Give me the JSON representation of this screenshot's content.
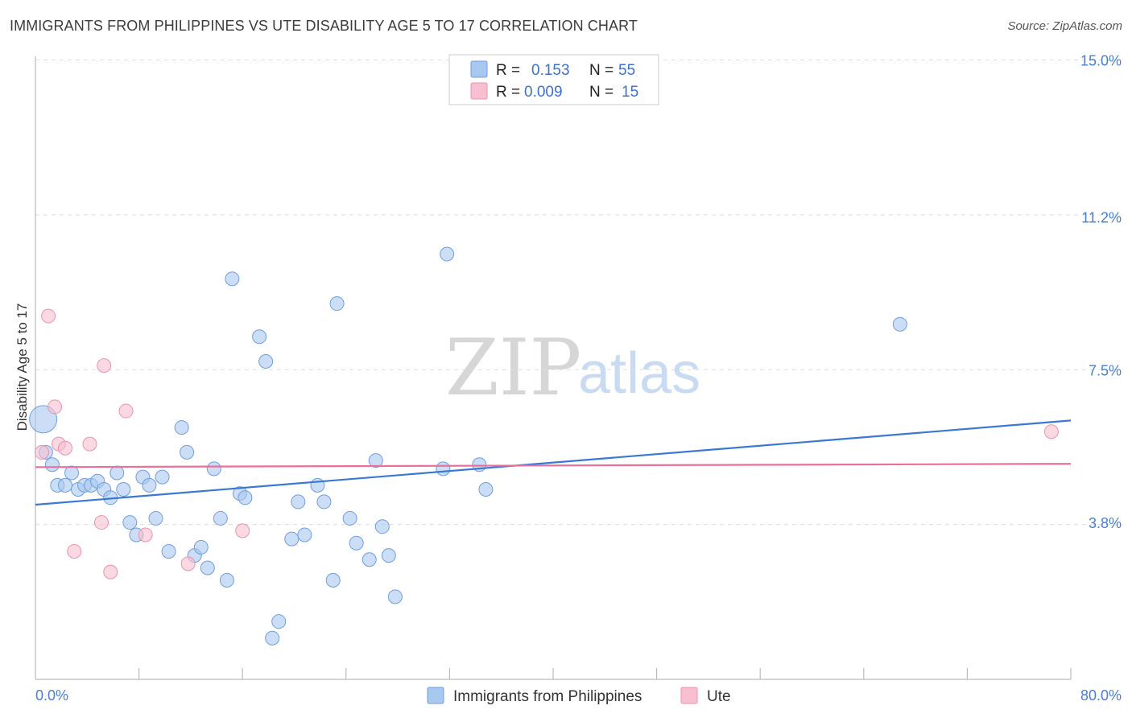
{
  "header": {
    "title": "IMMIGRANTS FROM PHILIPPINES VS UTE DISABILITY AGE 5 TO 17 CORRELATION CHART",
    "source": "Source: ZipAtlas.com"
  },
  "watermark": {
    "zip": "ZIP",
    "atlas": "atlas"
  },
  "stats_legend": [
    {
      "r_label": "R =",
      "r_value": "0.153",
      "n_label": "N =",
      "n_value": "55",
      "color": "#a9c8f0",
      "stroke": "#6f9ee0"
    },
    {
      "r_label": "R =",
      "r_value": "0.009",
      "n_label": "N =",
      "n_value": "15",
      "color": "#f7bfd0",
      "stroke": "#eb93ae"
    }
  ],
  "chart_data": {
    "type": "scatter",
    "title": "IMMIGRANTS FROM PHILIPPINES VS UTE DISABILITY AGE 5 TO 17 CORRELATION CHART",
    "xlabel": "",
    "ylabel": "Disability Age 5 to 17",
    "xlim": [
      0,
      80
    ],
    "ylim": [
      0,
      15.4
    ],
    "x_tick_labels": [
      {
        "value": 0,
        "label": "0.0%"
      },
      {
        "value": 80,
        "label": "80.0%"
      }
    ],
    "y_tick_labels": [
      {
        "value": 15.0,
        "label": "15.0%"
      },
      {
        "value": 11.2,
        "label": "11.2%"
      },
      {
        "value": 7.5,
        "label": "7.5%"
      },
      {
        "value": 3.8,
        "label": "3.8%"
      }
    ],
    "gridlines_y": [
      15.0,
      11.25,
      7.5,
      3.75
    ],
    "legend_position": "bottom-center",
    "series": [
      {
        "name": "Immigrants from Philippines",
        "color": "#a9c8f0",
        "stroke": "#6f9ee0",
        "trend_color": "#3a78d4",
        "trend": {
          "x": [
            0,
            80
          ],
          "y": [
            4.23,
            6.27
          ]
        },
        "points": [
          [
            0.6,
            6.3
          ],
          [
            0.8,
            5.5
          ],
          [
            1.3,
            5.2
          ],
          [
            1.7,
            4.7
          ],
          [
            2.3,
            4.7
          ],
          [
            2.8,
            5.0
          ],
          [
            3.3,
            4.6
          ],
          [
            3.8,
            4.7
          ],
          [
            4.3,
            4.7
          ],
          [
            4.8,
            4.8
          ],
          [
            5.3,
            4.6
          ],
          [
            5.8,
            4.4
          ],
          [
            6.3,
            5.0
          ],
          [
            6.8,
            4.6
          ],
          [
            7.3,
            3.8
          ],
          [
            7.8,
            3.5
          ],
          [
            8.3,
            4.9
          ],
          [
            8.8,
            4.7
          ],
          [
            9.3,
            3.9
          ],
          [
            9.8,
            4.9
          ],
          [
            10.3,
            3.1
          ],
          [
            11.3,
            6.1
          ],
          [
            11.7,
            5.5
          ],
          [
            12.3,
            3.0
          ],
          [
            12.8,
            3.2
          ],
          [
            13.3,
            2.7
          ],
          [
            13.8,
            5.1
          ],
          [
            14.3,
            3.9
          ],
          [
            14.8,
            2.4
          ],
          [
            15.2,
            9.7
          ],
          [
            15.8,
            4.5
          ],
          [
            16.2,
            4.4
          ],
          [
            17.3,
            8.3
          ],
          [
            17.8,
            7.7
          ],
          [
            18.3,
            1.0
          ],
          [
            18.8,
            1.4
          ],
          [
            19.8,
            3.4
          ],
          [
            20.3,
            4.3
          ],
          [
            20.8,
            3.5
          ],
          [
            21.8,
            4.7
          ],
          [
            22.3,
            4.3
          ],
          [
            23.0,
            2.4
          ],
          [
            23.3,
            9.1
          ],
          [
            24.3,
            3.9
          ],
          [
            24.8,
            3.3
          ],
          [
            25.8,
            2.9
          ],
          [
            26.3,
            5.3
          ],
          [
            26.8,
            3.7
          ],
          [
            27.3,
            3.0
          ],
          [
            27.8,
            2.0
          ],
          [
            31.5,
            5.1
          ],
          [
            31.8,
            10.3
          ],
          [
            34.3,
            5.2
          ],
          [
            34.8,
            4.6
          ],
          [
            66.8,
            8.6
          ]
        ]
      },
      {
        "name": "Ute",
        "color": "#f7bfd0",
        "stroke": "#eb93ae",
        "trend_color": "#e8709a",
        "trend": {
          "x": [
            0,
            80
          ],
          "y": [
            5.14,
            5.22
          ]
        },
        "points": [
          [
            0.5,
            5.5
          ],
          [
            1.0,
            8.8
          ],
          [
            1.5,
            6.6
          ],
          [
            1.8,
            5.7
          ],
          [
            2.3,
            5.6
          ],
          [
            3.0,
            3.1
          ],
          [
            4.2,
            5.7
          ],
          [
            5.1,
            3.8
          ],
          [
            5.3,
            7.6
          ],
          [
            5.8,
            2.6
          ],
          [
            7.0,
            6.5
          ],
          [
            8.5,
            3.5
          ],
          [
            11.8,
            2.8
          ],
          [
            16.0,
            3.6
          ],
          [
            78.5,
            6.0
          ]
        ]
      }
    ]
  }
}
